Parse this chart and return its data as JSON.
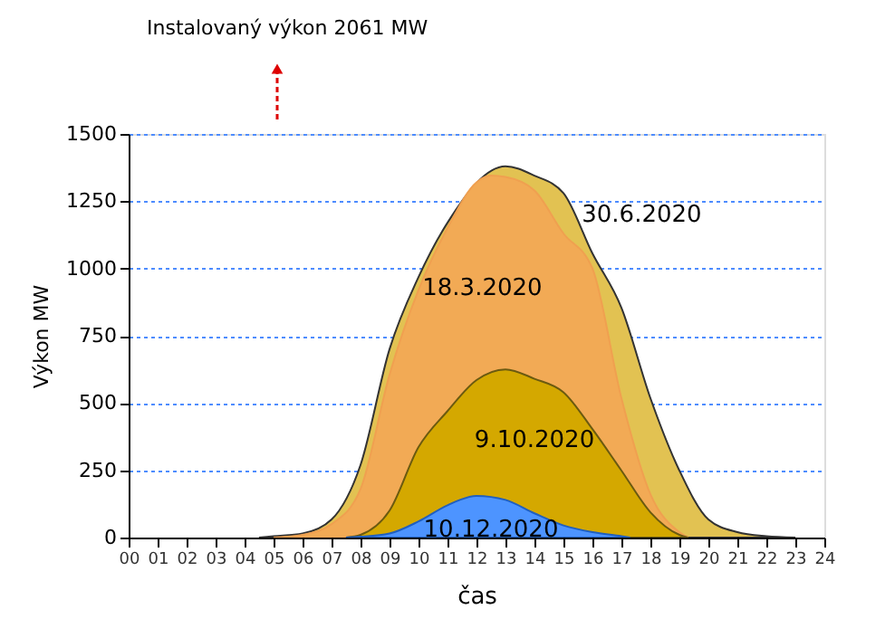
{
  "chart_data": {
    "type": "area",
    "xlabel": "čas",
    "ylabel": "Výkon MW",
    "annotations": [
      "Instalovaný výkon 2061 MW"
    ],
    "series": [
      {
        "name": "30.6.2020",
        "color": "#e2c252",
        "x": [
          4.5,
          5,
          6,
          7,
          8,
          9,
          10,
          11,
          13,
          14,
          15,
          16,
          17,
          18,
          19,
          20,
          21,
          22,
          23
        ],
        "values": [
          0,
          5,
          15,
          67,
          270,
          700,
          968,
          1170,
          1380,
          1345,
          1280,
          1056,
          854,
          518,
          249,
          67,
          20,
          5,
          0
        ]
      },
      {
        "name": "18.3.2020",
        "color": "#f2aa55",
        "x": [
          5,
          6,
          7,
          8,
          9,
          10,
          11,
          12,
          12.5,
          13,
          14,
          15,
          16,
          17,
          18,
          19,
          19.3
        ],
        "values": [
          0,
          10,
          50,
          180,
          605,
          920,
          1150,
          1320,
          1345,
          1340,
          1290,
          1130,
          1000,
          518,
          161,
          20,
          0
        ]
      },
      {
        "name": "9.10.2020",
        "color": "#d4a800",
        "x": [
          7.5,
          8,
          9,
          10,
          11,
          12,
          13,
          14,
          15,
          16,
          17,
          18,
          19,
          19.3
        ],
        "values": [
          0,
          10,
          100,
          336,
          470,
          585,
          625,
          590,
          540,
          403,
          249,
          94,
          10,
          0
        ]
      },
      {
        "name": "10.12.2020",
        "color": "#4d94ff",
        "x": [
          7.5,
          8,
          9,
          10,
          11,
          12,
          13,
          14,
          15,
          16,
          17,
          17.3
        ],
        "values": [
          0,
          3,
          15,
          60,
          120,
          155,
          140,
          90,
          45,
          20,
          5,
          0
        ]
      }
    ],
    "xlim": [
      0,
      24
    ],
    "xticks": [
      {
        "value": 0,
        "label": "00"
      },
      {
        "value": 1,
        "label": "01"
      },
      {
        "value": 2,
        "label": "02"
      },
      {
        "value": 3,
        "label": "03"
      },
      {
        "value": 4,
        "label": "04"
      },
      {
        "value": 5,
        "label": "05"
      },
      {
        "value": 6,
        "label": "06"
      },
      {
        "value": 7,
        "label": "07"
      },
      {
        "value": 8,
        "label": "08"
      },
      {
        "value": 9,
        "label": "09"
      },
      10,
      11,
      12,
      13,
      14,
      15,
      16,
      17,
      18,
      19,
      20,
      21,
      22,
      23,
      24
    ],
    "ylim": [
      0,
      1500
    ],
    "yticks": [
      0,
      250,
      500,
      750,
      1000,
      1250,
      1500
    ],
    "grid": "y",
    "legend": false
  }
}
